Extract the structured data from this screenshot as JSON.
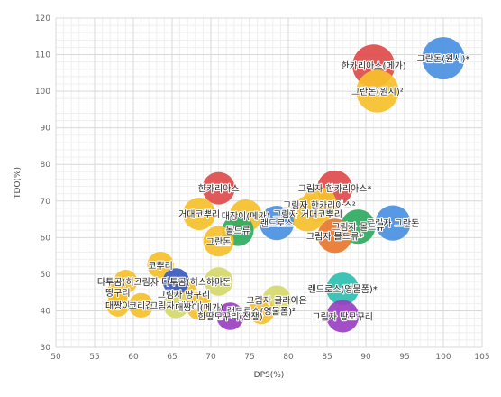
{
  "chart_data": {
    "type": "scatter",
    "title": "",
    "xlabel": "DPS(%)",
    "ylabel": "TDO(%)",
    "xlim": [
      50,
      105
    ],
    "ylim": [
      30,
      120
    ],
    "xticks": [
      "50",
      "55",
      "60",
      "65",
      "70",
      "75",
      "80",
      "85",
      "90",
      "95",
      "100",
      "105"
    ],
    "yticks": [
      "30",
      "40",
      "50",
      "60",
      "70",
      "80",
      "90",
      "100",
      "110",
      "120"
    ],
    "grid": true,
    "points": [
      {
        "label": "그란돈(원시)*",
        "x": 100,
        "y": 109,
        "size": 3,
        "color": "#4a90e2"
      },
      {
        "label": "한카리아스(메가)",
        "x": 91,
        "y": 107,
        "size": 3,
        "color": "#e04b4b"
      },
      {
        "label": "그란돈(원시)²",
        "x": 91.5,
        "y": 100,
        "size": 3,
        "color": "#f6c02a"
      },
      {
        "label": "한카리아스",
        "x": 71,
        "y": 73.5,
        "size": 2,
        "color": "#e04b4b"
      },
      {
        "label": "그림자 한카리아스*",
        "x": 86,
        "y": 73.5,
        "size": 2.3,
        "color": "#e04b4b"
      },
      {
        "label": "그림자 한카리아스²",
        "x": 84,
        "y": 69,
        "size": 2.3,
        "color": "#f6c02a"
      },
      {
        "label": "거대코뿌리",
        "x": 68.5,
        "y": 66.5,
        "size": 2,
        "color": "#f6c02a"
      },
      {
        "label": "대장이(메가)",
        "x": 74.5,
        "y": 66,
        "size": 2,
        "color": "#f6c02a"
      },
      {
        "label": "그림자 거대코뿌리",
        "x": 82.5,
        "y": 66.5,
        "size": 2.3,
        "color": "#f6c02a"
      },
      {
        "label": "그림자 그란돈",
        "x": 93.5,
        "y": 64,
        "size": 2.3,
        "color": "#4a90e2"
      },
      {
        "label": "랜드로스",
        "x": 78.5,
        "y": 64,
        "size": 2.2,
        "color": "#4a90e2"
      },
      {
        "label": "몰드류",
        "x": 73.5,
        "y": 62,
        "size": 1.9,
        "color": "#2eaa5f"
      },
      {
        "label": "그란돈",
        "x": 71,
        "y": 59,
        "size": 1.8,
        "color": "#f6c02a"
      },
      {
        "label": "그림자 몰드류",
        "x": 89,
        "y": 63,
        "size": 2.2,
        "color": "#2eaa5f"
      },
      {
        "label": "그림자 몰드류*",
        "x": 86,
        "y": 60.5,
        "size": 2.2,
        "color": "#e8772e"
      },
      {
        "label": "코뿌리",
        "x": 63.5,
        "y": 52.5,
        "size": 1.4,
        "color": "#f6c02a"
      },
      {
        "label": "다투곰(히스이)",
        "x": 59,
        "y": 48,
        "size": 1.1,
        "color": "#f6c02a"
      },
      {
        "label": "그림자 다투곰(히스이)",
        "x": 65.5,
        "y": 48,
        "size": 1.4,
        "color": "#3a5bbf"
      },
      {
        "label": "하마돈",
        "x": 71,
        "y": 48,
        "size": 1.6,
        "color": "#d6d96a"
      },
      {
        "label": "땅구리",
        "x": 58,
        "y": 45,
        "size": 1.0,
        "color": "#f6c02a"
      },
      {
        "label": "그림자 땅구리",
        "x": 66.5,
        "y": 44.5,
        "size": 1.6,
        "color": "#f6c02a"
      },
      {
        "label": "대짱이",
        "x": 58,
        "y": 41.5,
        "size": 1.0,
        "color": "#f6c02a"
      },
      {
        "label": "코리갑",
        "x": 61,
        "y": 41.5,
        "size": 1.2,
        "color": "#f6c02a"
      },
      {
        "label": "그림자 대짱이",
        "x": 65.5,
        "y": 41.5,
        "size": 1.3,
        "color": "#d6d96a"
      },
      {
        "label": "대짱이(메가)",
        "x": 68.5,
        "y": 41,
        "size": 1.3,
        "color": "#f6c02a"
      },
      {
        "label": "랜드로스(영물폼)*",
        "x": 87,
        "y": 46,
        "size": 2.0,
        "color": "#2bbfb0"
      },
      {
        "label": "그림자 글라이온",
        "x": 78.5,
        "y": 43,
        "size": 1.6,
        "color": "#d6d96a"
      },
      {
        "label": "랜드로스(영물폼)²",
        "x": 76.5,
        "y": 40,
        "size": 1.4,
        "color": "#f6c02a"
      },
      {
        "label": "한땅모꾸리(전쟁)",
        "x": 72.5,
        "y": 38.5,
        "size": 1.5,
        "color": "#9b3fc1"
      },
      {
        "label": "그림자 땅모꾸리",
        "x": 87,
        "y": 38.5,
        "size": 2.0,
        "color": "#9b3fc1"
      }
    ]
  }
}
